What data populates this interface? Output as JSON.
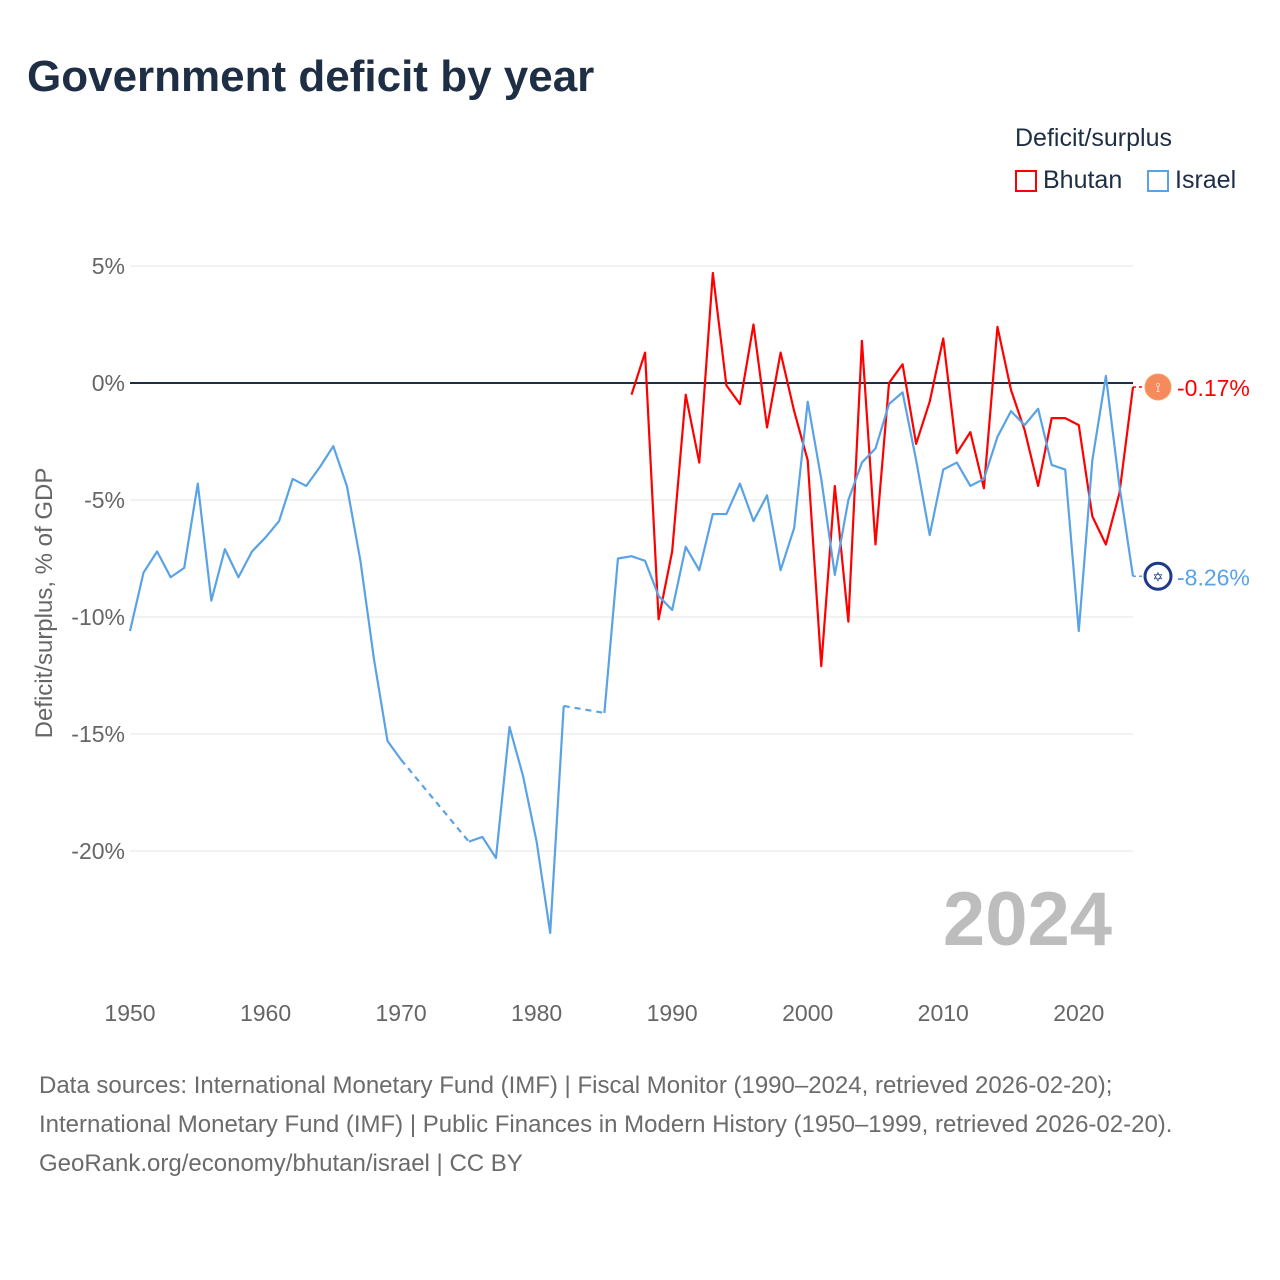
{
  "title": "Government deficit by year",
  "legend": {
    "title": "Deficit/surplus",
    "items": [
      {
        "name": "Bhutan",
        "color": "#ff0000"
      },
      {
        "name": "Israel",
        "color": "#5aa2e6"
      }
    ]
  },
  "footer": {
    "line1": "Data sources: International Monetary Fund (IMF) | Fiscal Monitor (1990–2024, retrieved 2026-02-20); International Monetary Fund (IMF) | Public Finances in Modern History (1950–1999, retrieved 2026-02-20).",
    "line2": "GeoRank.org/economy/bhutan/israel | CC BY"
  },
  "chart_data": {
    "type": "line",
    "title": "Government deficit by year",
    "xlabel": "",
    "ylabel": "Deficit/surplus, % of GDP",
    "xlim": [
      1950,
      2024
    ],
    "ylim": [
      -23.5,
      5
    ],
    "yticks": [
      {
        "v": 5,
        "label": "5%"
      },
      {
        "v": 0,
        "label": "0%"
      },
      {
        "v": -5,
        "label": "-5%"
      },
      {
        "v": -10,
        "label": "-10%"
      },
      {
        "v": -15,
        "label": "-15%"
      },
      {
        "v": -20,
        "label": "-20%"
      }
    ],
    "xticks": [
      1950,
      1960,
      1970,
      1980,
      1990,
      2000,
      2010,
      2020
    ],
    "current_year": "2024",
    "series": [
      {
        "name": "Bhutan",
        "color": "#ff0000",
        "end_label": "-0.17%",
        "start": 1987,
        "values": [
          -0.5,
          1.3,
          -10.1,
          -7.2,
          -0.5,
          -3.4,
          4.7,
          -0.1,
          -0.9,
          2.5,
          -1.9,
          1.3,
          -1.2,
          -3.3,
          -12.1,
          -4.4,
          -10.2,
          1.8,
          -6.9,
          0.0,
          0.8,
          -2.6,
          -0.8,
          1.9,
          -3.0,
          -2.1,
          -4.5,
          2.4,
          -0.3,
          -2.0,
          -4.4,
          -1.5,
          -1.5,
          -1.8,
          -5.7,
          -6.9,
          -4.7,
          -0.17
        ]
      },
      {
        "name": "Israel",
        "color": "#5aa2e6",
        "end_label": "-8.26%",
        "start": 1950,
        "values": [
          -10.6,
          -8.1,
          -7.2,
          -8.3,
          -7.9,
          -4.3,
          -9.3,
          -7.1,
          -8.3,
          -7.2,
          -6.6,
          -5.9,
          -4.1,
          -4.4,
          -3.6,
          -2.7,
          -4.4,
          -7.6,
          -11.8,
          -15.3,
          -16.1,
          null,
          null,
          null,
          null,
          -19.6,
          -19.4,
          -20.3,
          -14.7,
          -16.8,
          -19.6,
          -23.5,
          -13.8,
          null,
          null,
          -14.1,
          -7.5,
          -7.4,
          -7.6,
          -9.1,
          -9.7,
          -7.0,
          -8.0,
          -5.6,
          -5.6,
          -4.3,
          -5.9,
          -4.8,
          -8.0,
          -6.2,
          -0.8,
          -4.1,
          -8.2,
          -5.0,
          -3.4,
          -2.8,
          -0.9,
          -0.4,
          -3.3,
          -6.5,
          -3.7,
          -3.4,
          -4.4,
          -4.1,
          -2.3,
          -1.2,
          -1.8,
          -1.1,
          -3.5,
          -3.7,
          -10.6,
          -3.3,
          0.3,
          -4.4,
          -8.26
        ]
      }
    ]
  }
}
